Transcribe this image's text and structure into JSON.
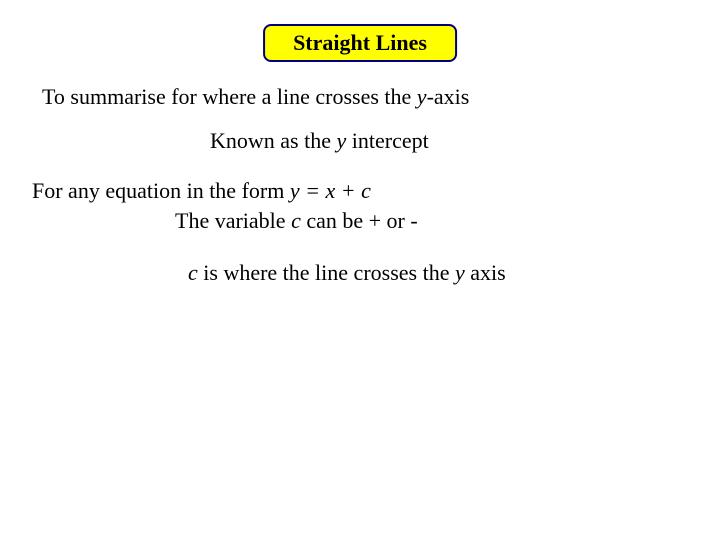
{
  "title": "Straight Lines",
  "lines": {
    "summary_pre": "To summarise for where a line crosses the ",
    "summary_ital": "y",
    "summary_post": "-axis",
    "known_pre": "Known as the ",
    "known_ital": "y",
    "known_post": " intercept",
    "form_pre": "For any equation in the form  ",
    "form_ital": "y = x + c",
    "var_pre": "The variable ",
    "var_ital": "c",
    "var_post": " can be + or -",
    "cross_ital1": "c",
    "cross_mid": " is where the line crosses the ",
    "cross_ital2": "y",
    "cross_post": " axis"
  },
  "style": {
    "title_bg": "#ffff00",
    "title_border": "#000080",
    "font_size_pt": 22,
    "font_family": "Times New Roman"
  }
}
